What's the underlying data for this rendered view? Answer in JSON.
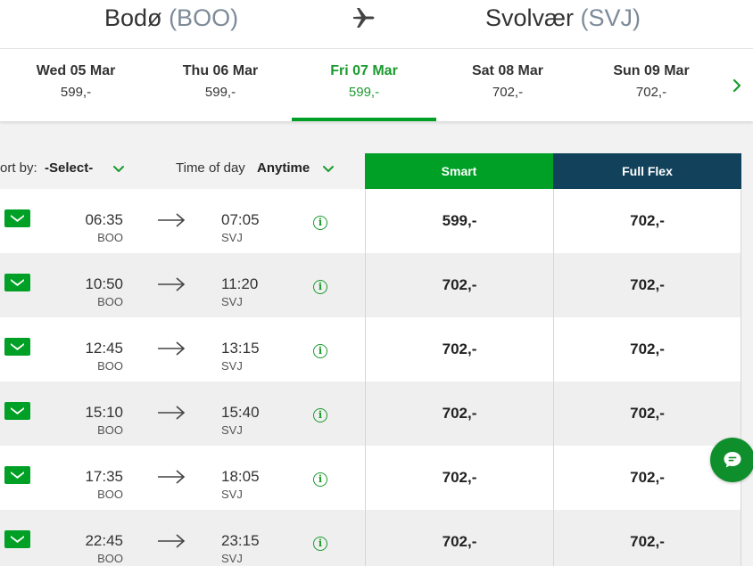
{
  "route": {
    "origin_city": "Bodø",
    "origin_code": "(BOO)",
    "destination_city": "Svolvær",
    "destination_code": "(SVJ)"
  },
  "dates": [
    {
      "label": "Wed 05 Mar",
      "price": "599,-",
      "active": false
    },
    {
      "label": "Thu 06 Mar",
      "price": "599,-",
      "active": false
    },
    {
      "label": "Fri 07 Mar",
      "price": "599,-",
      "active": true
    },
    {
      "label": "Sat 08 Mar",
      "price": "702,-",
      "active": false
    },
    {
      "label": "Sun 09 Mar",
      "price": "702,-",
      "active": false
    }
  ],
  "filters": {
    "sort_label": "ort by:",
    "sort_value": "-Select-",
    "time_label": "Time of day",
    "time_value": "Anytime"
  },
  "fares": {
    "smart_label": "Smart",
    "flex_label": "Full Flex"
  },
  "flights": [
    {
      "dep_time": "06:35",
      "dep_code": "BOO",
      "arr_time": "07:05",
      "arr_code": "SVJ",
      "smart": "599,-",
      "flex": "702,-"
    },
    {
      "dep_time": "10:50",
      "dep_code": "BOO",
      "arr_time": "11:20",
      "arr_code": "SVJ",
      "smart": "702,-",
      "flex": "702,-"
    },
    {
      "dep_time": "12:45",
      "dep_code": "BOO",
      "arr_time": "13:15",
      "arr_code": "SVJ",
      "smart": "702,-",
      "flex": "702,-"
    },
    {
      "dep_time": "15:10",
      "dep_code": "BOO",
      "arr_time": "15:40",
      "arr_code": "SVJ",
      "smart": "702,-",
      "flex": "702,-"
    },
    {
      "dep_time": "17:35",
      "dep_code": "BOO",
      "arr_time": "18:05",
      "arr_code": "SVJ",
      "smart": "702,-",
      "flex": "702,-"
    },
    {
      "dep_time": "22:45",
      "dep_code": "BOO",
      "arr_time": "23:15",
      "arr_code": "SVJ",
      "smart": "702,-",
      "flex": "702,-"
    }
  ],
  "icons": {
    "plane": "plane-icon",
    "next": "chevron-right-icon",
    "chevron": "chevron-down-icon",
    "airline": "airline-logo-icon",
    "arrow": "arrow-right-icon",
    "info": "info-icon",
    "info_glyph": "i",
    "chat": "chat-icon"
  },
  "colors": {
    "brand_green": "#00a026",
    "flex_navy": "#12425b",
    "active_text": "#1a9a2e"
  }
}
